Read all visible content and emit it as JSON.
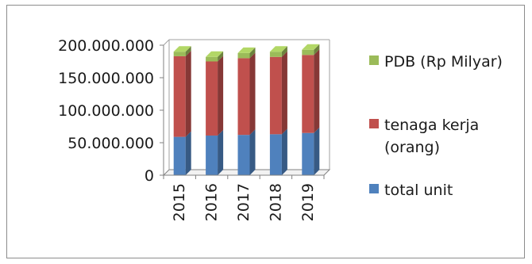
{
  "chart_data": {
    "type": "bar",
    "stacked": true,
    "style": "3d-stacked-column",
    "categories": [
      "2015",
      "2016",
      "2017",
      "2018",
      "2019"
    ],
    "series": [
      {
        "name": "total unit",
        "color": "#4F81BD",
        "values": [
          59000000,
          61000000,
          62000000,
          63000000,
          65000000
        ]
      },
      {
        "name": "tenaga kerja (orang)",
        "color": "#C0504D",
        "values": [
          124000000,
          114000000,
          118000000,
          119000000,
          120000000
        ]
      },
      {
        "name": "PDB (Rp Milyar)",
        "color": "#9BBB59",
        "values": [
          7000000,
          7000000,
          8000000,
          8000000,
          8000000
        ]
      }
    ],
    "yticks": [
      "200.000.000",
      "150.000.000",
      "100.000.000",
      "50.000.000",
      "0"
    ],
    "ylim": [
      0,
      200000000
    ],
    "grid": false,
    "legend_position": "right",
    "legend": [
      {
        "label_lines": [
          "PDB (Rp Milyar)"
        ],
        "color": "#9BBB59"
      },
      {
        "label_lines": [
          "tenaga kerja",
          "(orang)"
        ],
        "color": "#C0504D"
      },
      {
        "label_lines": [
          "total unit"
        ],
        "color": "#4F81BD"
      }
    ]
  }
}
